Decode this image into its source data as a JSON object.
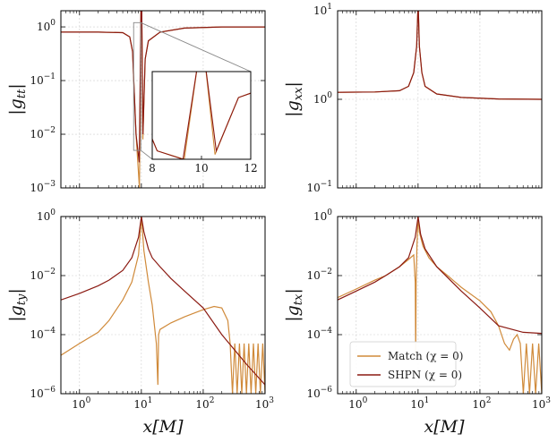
{
  "figure": {
    "x_title": "x[M]",
    "colors": {
      "match": "#d08a3a",
      "shpn": "#8b1a12",
      "inset_box": "#888888"
    }
  },
  "chart_data": [
    {
      "type": "line",
      "id": "gtt",
      "ylabel": "|g_tt|",
      "xscale": "log",
      "yscale": "log",
      "xlim": [
        0.5,
        1000
      ],
      "ylim": [
        0.001,
        2
      ],
      "x_ticks": [
        "10^0",
        "10^1",
        "10^2",
        "10^3"
      ],
      "y_ticks": [
        "10^-3",
        "10^-2",
        "10^-1",
        "10^0"
      ],
      "x_tick_labels_visible": false,
      "series": [
        {
          "name": "Match (χ = 0)",
          "x": [
            0.5,
            2,
            5,
            6.5,
            7.2,
            8.2,
            9.3,
            9.85,
            10.15,
            10.55,
            11.5,
            13,
            20,
            50,
            200,
            1000
          ],
          "y": [
            0.8,
            0.8,
            0.78,
            0.65,
            0.35,
            0.01,
            0.001,
            2,
            2,
            0.008,
            0.25,
            0.55,
            0.8,
            0.95,
            1.0,
            1.0
          ]
        },
        {
          "name": "SHPN (χ = 0)",
          "x": [
            0.5,
            2,
            5,
            6.5,
            7.2,
            8.2,
            9.25,
            9.85,
            10.15,
            10.6,
            11.5,
            13,
            20,
            50,
            200,
            1000
          ],
          "y": [
            0.8,
            0.8,
            0.78,
            0.65,
            0.35,
            0.01,
            0.003,
            2,
            2,
            0.01,
            0.25,
            0.55,
            0.8,
            0.95,
            1.0,
            1.0
          ]
        }
      ],
      "inset": {
        "xlim": [
          8,
          12
        ],
        "x_ticks": [
          "8",
          "10",
          "12"
        ],
        "zoom_x": [
          7.5,
          9.8
        ],
        "zoom_y": [
          0.005,
          1.2
        ]
      }
    },
    {
      "type": "line",
      "id": "gxx",
      "ylabel": "|g_xx|",
      "xscale": "log",
      "yscale": "log",
      "xlim": [
        0.5,
        1000
      ],
      "ylim": [
        0.1,
        10
      ],
      "x_ticks": [
        "10^0",
        "10^1",
        "10^2",
        "10^3"
      ],
      "y_ticks": [
        "10^-1",
        "10^0",
        "10^1"
      ],
      "x_tick_labels_visible": false,
      "series": [
        {
          "name": "Match (χ = 0)",
          "x": [
            0.5,
            2,
            5,
            7,
            8.5,
            9.5,
            9.9,
            10.1,
            10.5,
            11.5,
            13,
            20,
            50,
            200,
            1000
          ],
          "y": [
            1.2,
            1.21,
            1.25,
            1.4,
            2,
            4,
            10,
            10,
            4,
            2,
            1.4,
            1.15,
            1.05,
            1.01,
            1.0
          ]
        },
        {
          "name": "SHPN (χ = 0)",
          "x": [
            0.5,
            2,
            5,
            7,
            8.5,
            9.5,
            9.9,
            10.1,
            10.5,
            11.5,
            13,
            20,
            50,
            200,
            1000
          ],
          "y": [
            1.2,
            1.21,
            1.25,
            1.4,
            2,
            4,
            10,
            10,
            4,
            2,
            1.4,
            1.15,
            1.05,
            1.01,
            1.0
          ]
        }
      ]
    },
    {
      "type": "line",
      "id": "gty",
      "ylabel": "|g_ty|",
      "xscale": "log",
      "yscale": "log",
      "xlim": [
        0.5,
        1000
      ],
      "ylim": [
        1e-06,
        1
      ],
      "x_ticks": [
        "10^0",
        "10^1",
        "10^2",
        "10^3"
      ],
      "y_ticks": [
        "10^-6",
        "10^-4",
        "10^-2",
        "10^0"
      ],
      "x_tick_labels_visible": true,
      "series": [
        {
          "name": "Match (χ = 0)",
          "x": [
            0.5,
            1,
            2,
            3,
            5,
            7,
            9,
            10,
            11,
            13,
            15,
            17.5,
            18.5,
            19,
            20,
            30,
            50,
            100,
            150,
            200,
            250
          ],
          "y": [
            2e-05,
            5e-05,
            0.00012,
            0.0003,
            0.0015,
            0.006,
            0.05,
            1,
            0.07,
            0.006,
            0.001,
            5e-05,
            2e-06,
            0.0001,
            0.00015,
            0.00025,
            0.0004,
            0.0007,
            0.0009,
            0.0008,
            0.0003
          ],
          "oscillation": {
            "x_start": 250,
            "x_end": 1000,
            "peak": 5e-05,
            "trough": 1e-06,
            "count": 8
          }
        },
        {
          "name": "SHPN (χ = 0)",
          "x": [
            0.5,
            1,
            2,
            3,
            5,
            7,
            9,
            10,
            11,
            13,
            15,
            20,
            30,
            50,
            100,
            200,
            500,
            1000
          ],
          "y": [
            0.0015,
            0.0025,
            0.0045,
            0.007,
            0.015,
            0.04,
            0.2,
            1,
            0.3,
            0.08,
            0.04,
            0.02,
            0.008,
            0.003,
            0.0008,
            0.0001,
            1e-05,
            2e-06
          ]
        }
      ]
    },
    {
      "type": "line",
      "id": "gtx",
      "ylabel": "|g_tx|",
      "xscale": "log",
      "yscale": "log",
      "xlim": [
        0.5,
        1000
      ],
      "ylim": [
        1e-06,
        1
      ],
      "x_ticks": [
        "10^0",
        "10^1",
        "10^2",
        "10^3"
      ],
      "y_ticks": [
        "10^-6",
        "10^-4",
        "10^-2",
        "10^0"
      ],
      "x_tick_labels_visible": true,
      "series": [
        {
          "name": "Match (χ = 0)",
          "x": [
            0.5,
            1,
            2,
            3,
            5,
            7,
            8.5,
            9,
            9.15,
            9.3,
            9.6,
            10,
            10.5,
            12,
            15,
            20,
            30,
            50,
            100,
            150,
            200,
            250,
            300,
            350,
            400
          ],
          "y": [
            0.0018,
            0.0035,
            0.007,
            0.01,
            0.02,
            0.035,
            0.05,
            0.006,
            2e-05,
            0.006,
            0.1,
            1,
            0.3,
            0.1,
            0.04,
            0.02,
            0.01,
            0.004,
            0.0014,
            0.0006,
            0.0002,
            5e-05,
            3e-05,
            7e-05,
            0.0001
          ],
          "oscillation": {
            "x_start": 400,
            "x_end": 1000,
            "peak": 5e-05,
            "trough": 1e-06,
            "count": 4
          }
        },
        {
          "name": "SHPN (χ = 0)",
          "x": [
            0.5,
            1,
            2,
            3,
            5,
            7,
            9,
            10,
            11,
            13,
            20,
            50,
            100,
            200,
            500,
            1000
          ],
          "y": [
            0.0015,
            0.003,
            0.006,
            0.01,
            0.02,
            0.04,
            0.2,
            1,
            0.25,
            0.08,
            0.02,
            0.003,
            0.0008,
            0.0002,
            0.00012,
            0.00011
          ]
        }
      ],
      "legend": {
        "placement": "lower-left",
        "entries": [
          "Match (χ = 0)",
          "SHPN (χ = 0)"
        ]
      }
    }
  ]
}
